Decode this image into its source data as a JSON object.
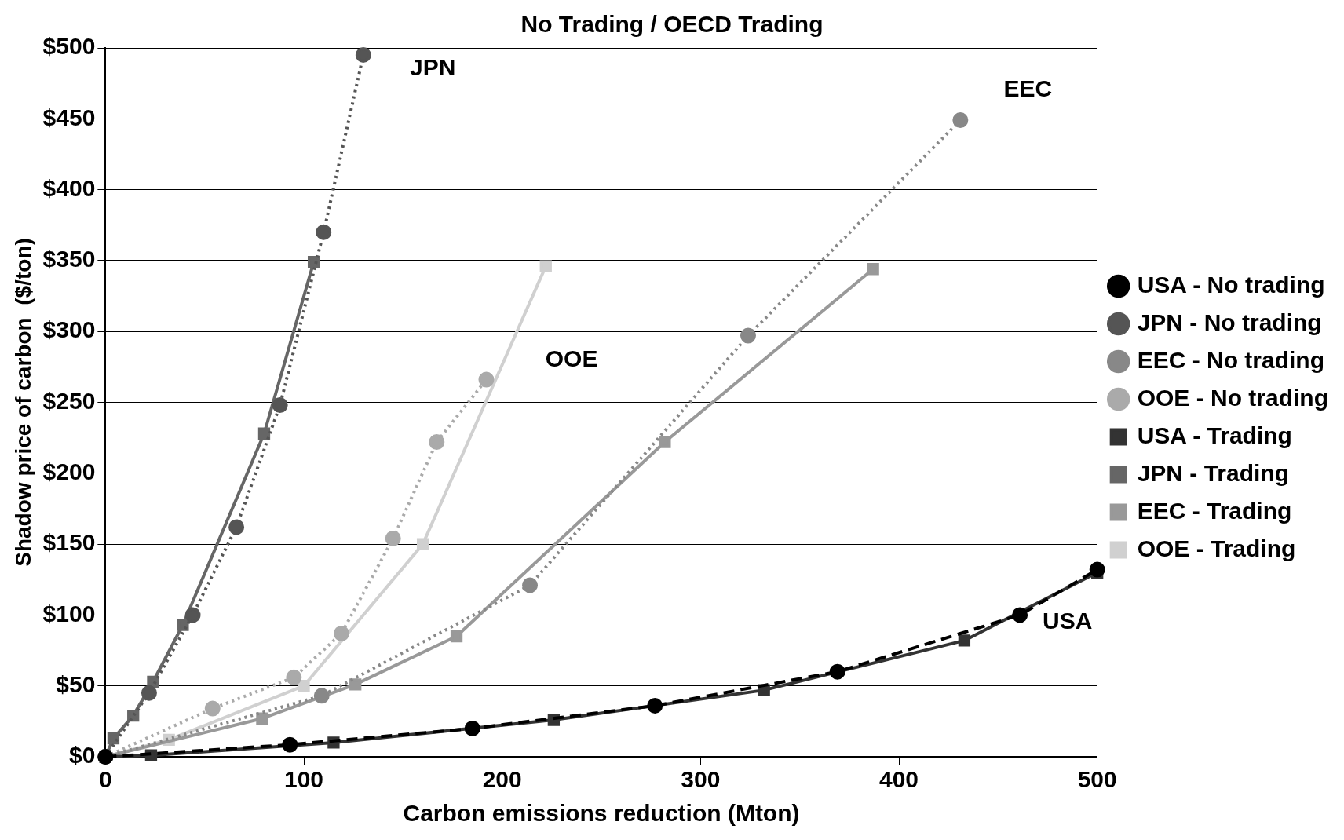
{
  "chart_data": {
    "type": "line",
    "title": "No Trading / OECD Trading",
    "xlabel": "Carbon emissions reduction (Mton)",
    "ylabel": "Shadow price of carbon  ($/ton)",
    "xlim": [
      0,
      500
    ],
    "xticks": [
      0,
      100,
      200,
      300,
      400,
      500
    ],
    "ylim": [
      0,
      500
    ],
    "yticks": [
      {
        "value": 0,
        "label": "$0"
      },
      {
        "value": 50,
        "label": "$50"
      },
      {
        "value": 100,
        "label": "$100"
      },
      {
        "value": 150,
        "label": "$150"
      },
      {
        "value": 200,
        "label": "$200"
      },
      {
        "value": 250,
        "label": "$250"
      },
      {
        "value": 300,
        "label": "$300"
      },
      {
        "value": 350,
        "label": "$350"
      },
      {
        "value": 400,
        "label": "$400"
      },
      {
        "value": 450,
        "label": "$450"
      },
      {
        "value": 500,
        "label": "$500"
      }
    ],
    "grid": "y",
    "legend": "right",
    "series": [
      {
        "name": "USA - No trading",
        "color": "#000000",
        "marker": "circle",
        "line_style": "dashed",
        "x": [
          0,
          93,
          185,
          277,
          369,
          461,
          500
        ],
        "values": [
          0,
          8.5,
          20,
          36,
          60,
          100,
          132
        ]
      },
      {
        "name": "JPN - No trading",
        "color": "#555555",
        "marker": "circle",
        "line_style": "dotted",
        "x": [
          0,
          22,
          44,
          66,
          88,
          110,
          130
        ],
        "values": [
          0,
          45,
          100,
          162,
          248,
          370,
          495
        ]
      },
      {
        "name": "EEC - No trading",
        "color": "#888888",
        "marker": "circle",
        "line_style": "dotted",
        "x": [
          0,
          109,
          214,
          324,
          431
        ],
        "values": [
          0,
          43,
          121,
          297,
          449
        ]
      },
      {
        "name": "OOE - No trading",
        "color": "#aaaaaa",
        "marker": "circle",
        "line_style": "dotted",
        "x": [
          0,
          54,
          95,
          119,
          145,
          167,
          192
        ],
        "values": [
          0,
          34,
          56,
          87,
          154,
          222,
          266
        ]
      },
      {
        "name": "USA - Trading",
        "color": "#333333",
        "marker": "square",
        "line_style": "solid",
        "x": [
          0,
          23,
          115,
          226,
          332,
          433,
          500
        ],
        "values": [
          0,
          1,
          10,
          26,
          47,
          82,
          130
        ]
      },
      {
        "name": "JPN - Trading",
        "color": "#666666",
        "marker": "square",
        "line_style": "solid",
        "x": [
          0,
          4,
          14,
          24,
          39,
          80,
          105
        ],
        "values": [
          0,
          13,
          29,
          53,
          93,
          228,
          349
        ]
      },
      {
        "name": "EEC - Trading",
        "color": "#999999",
        "marker": "square",
        "line_style": "solid",
        "x": [
          0,
          79,
          126,
          177,
          282,
          387
        ],
        "values": [
          0,
          27,
          51,
          85,
          222,
          344
        ]
      },
      {
        "name": "OOE - Trading",
        "color": "#d0d0d0",
        "marker": "square",
        "line_style": "solid",
        "x": [
          0,
          32,
          100,
          160,
          222
        ],
        "values": [
          0,
          12,
          50,
          150,
          346
        ]
      }
    ],
    "annotations": [
      "JPN",
      "EEC",
      "OOE",
      "USA"
    ]
  }
}
